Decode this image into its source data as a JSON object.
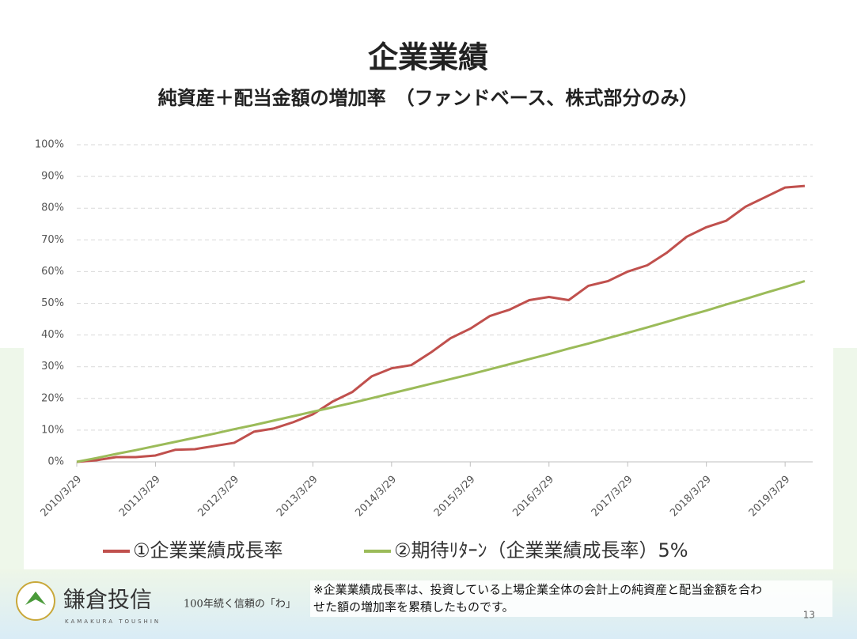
{
  "chart_data": {
    "type": "line",
    "title": "企業業績",
    "subtitle": "純資産＋配当金額の増加率　（ファンドベース、株式部分のみ）",
    "categories": [
      "2010/3/29",
      null,
      null,
      null,
      "2011/3/29",
      null,
      null,
      null,
      "2012/3/29",
      null,
      null,
      null,
      "2013/3/29",
      null,
      null,
      null,
      "2014/3/29",
      null,
      null,
      null,
      "2015/3/29",
      null,
      null,
      null,
      "2016/3/29",
      null,
      null,
      null,
      "2017/3/29",
      null,
      null,
      null,
      "2018/3/29",
      null,
      null,
      null,
      "2019/3/29",
      null
    ],
    "series": [
      {
        "name": "①企業業績成長率",
        "color": "#c0504d",
        "values": [
          0,
          0.5,
          1.5,
          1.5,
          2,
          3.8,
          4,
          5,
          6,
          9.5,
          10.5,
          12.5,
          15,
          19,
          22,
          27,
          29.5,
          30.5,
          34.5,
          39,
          42,
          46,
          48,
          51,
          52,
          51,
          55.5,
          57,
          60,
          62,
          66,
          71,
          74,
          76,
          80.5,
          83.5,
          86.5,
          87
        ]
      },
      {
        "name": "②期待ﾘﾀｰﾝ（企業業績成長率）5%",
        "color": "#9bbb59",
        "values": [
          0,
          1.2,
          2.5,
          3.7,
          5,
          6.3,
          7.6,
          8.9,
          10.3,
          11.6,
          13.0,
          14.4,
          15.8,
          17.2,
          18.6,
          20.1,
          21.6,
          23.1,
          24.6,
          26.1,
          27.6,
          29.2,
          30.8,
          32.4,
          34.0,
          35.7,
          37.3,
          39.0,
          40.7,
          42.4,
          44.2,
          46.0,
          47.7,
          49.6,
          51.4,
          53.3,
          55.1,
          57.0
        ]
      }
    ],
    "ylim": [
      0,
      100
    ],
    "yticks": [
      {
        "value": 0,
        "label": "0%"
      },
      {
        "value": 10,
        "label": "10%"
      },
      {
        "value": 20,
        "label": "20%"
      },
      {
        "value": 30,
        "label": "30%"
      },
      {
        "value": 40,
        "label": "40%"
      },
      {
        "value": 50,
        "label": "50%"
      },
      {
        "value": 60,
        "label": "60%"
      },
      {
        "value": 70,
        "label": "70%"
      },
      {
        "value": 80,
        "label": "80%"
      },
      {
        "value": 90,
        "label": "90%"
      },
      {
        "value": 100,
        "label": "100%"
      }
    ],
    "grid": true,
    "legend": "bottom"
  },
  "footer": {
    "logo": "鎌倉投信",
    "logo_sub": "KAMAKURA TOUSHIN",
    "tagline": "100年続く信頼の「わ」",
    "note": [
      "※企業業績成長率は、投資している上場企業全体の会計上の純資産と配当金額を合わ",
      "せた額の増加率を累積したものです。"
    ],
    "page": "13"
  }
}
